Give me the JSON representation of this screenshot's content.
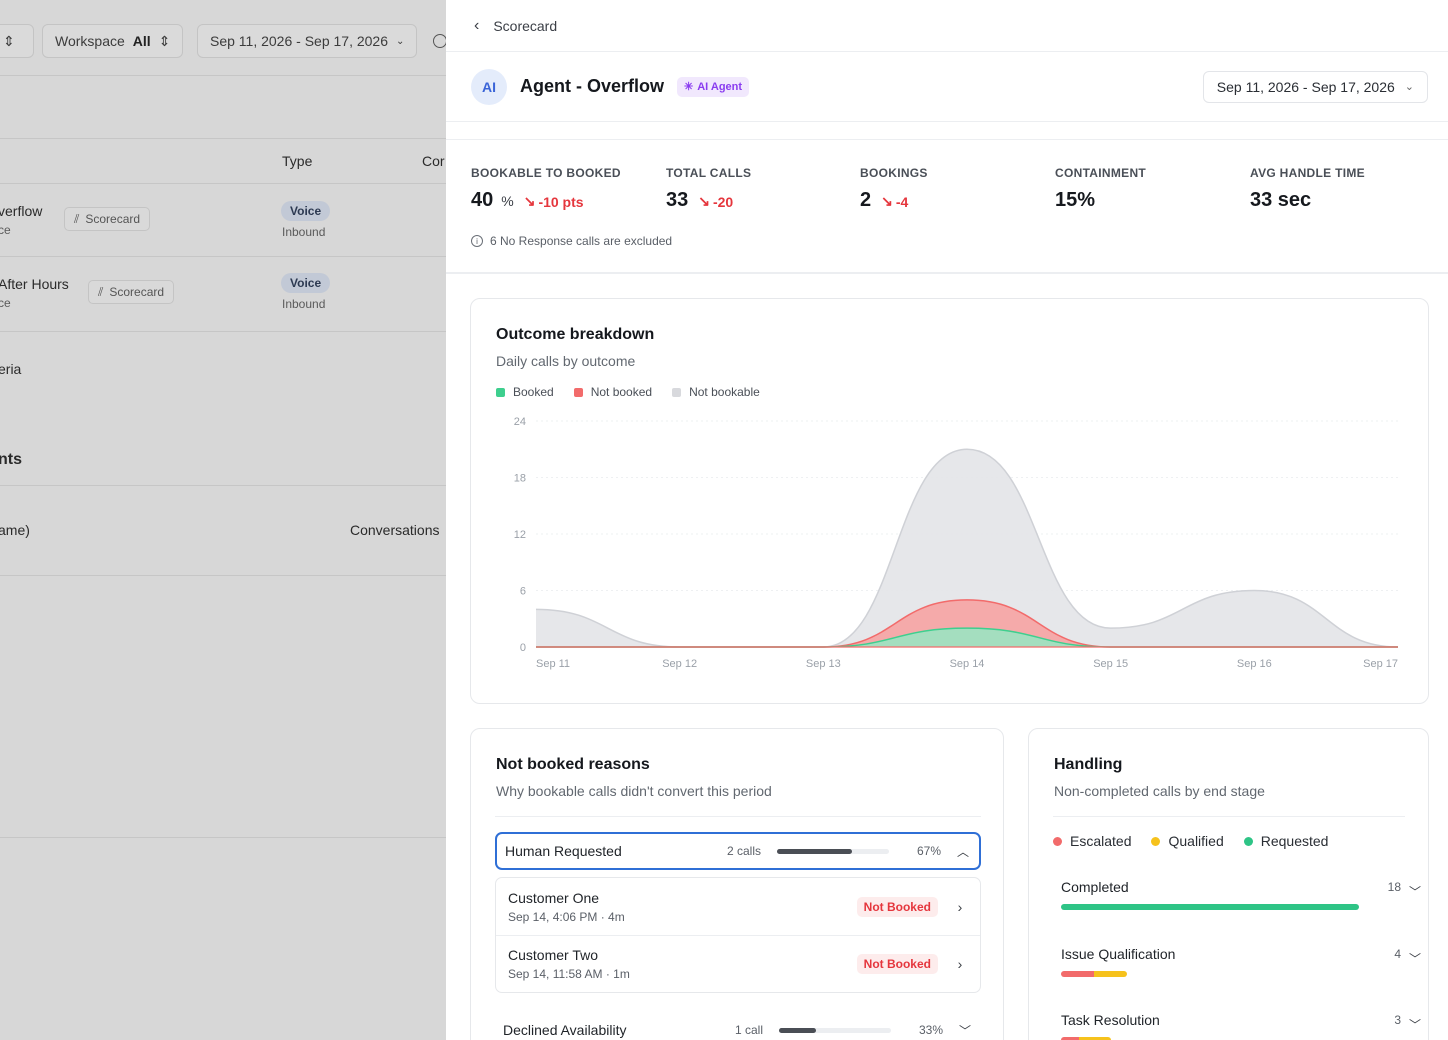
{
  "background": {
    "toolbar": {
      "workspace_label": "Workspace",
      "workspace_value": "All",
      "date_range": "Sep 11, 2026 - Sep 17, 2026"
    },
    "table": {
      "col_type": "Type",
      "col_co": "Cor",
      "rows": [
        {
          "name": "verflow",
          "sub": "ce",
          "chip": "Scorecard",
          "type": "Voice",
          "direction": "Inbound"
        },
        {
          "name": "After Hours",
          "sub": "ce",
          "chip": "Scorecard",
          "type": "Voice",
          "direction": "Inbound"
        }
      ]
    },
    "criteria_label": "eria",
    "section_label": "nts",
    "name_col": "ame)",
    "conversations_col": "Conversations"
  },
  "panel": {
    "back_label": "Scorecard",
    "agent": {
      "avatar": "AI",
      "name": "Agent - Overflow",
      "badge": "AI Agent"
    },
    "date_range": "Sep 11, 2026 - Sep 17, 2026",
    "kpis": [
      {
        "label": "BOOKABLE TO BOOKED",
        "value": "40",
        "unit": "%",
        "delta": "-10 pts"
      },
      {
        "label": "TOTAL CALLS",
        "value": "33",
        "unit": "",
        "delta": "-20"
      },
      {
        "label": "BOOKINGS",
        "value": "2",
        "unit": "",
        "delta": "-4"
      },
      {
        "label": "CONTAINMENT",
        "value": "15%",
        "unit": "",
        "delta": ""
      },
      {
        "label": "AVG HANDLE TIME",
        "value": "33 sec",
        "unit": "",
        "delta": ""
      }
    ],
    "note": "6 No Response calls are excluded",
    "outcome": {
      "title": "Outcome breakdown",
      "subtitle": "Daily calls by outcome",
      "legend": [
        "Booked",
        "Not booked",
        "Not bookable"
      ]
    },
    "reasons": {
      "title": "Not booked reasons",
      "subtitle": "Why bookable calls didn't convert this period",
      "items": [
        {
          "label": "Human Requested",
          "calls": "2 calls",
          "pct": "67%",
          "fill": 0.67
        },
        {
          "label": "Declined Availability",
          "calls": "1 call",
          "pct": "33%",
          "fill": 0.33
        }
      ],
      "calls": [
        {
          "name": "Customer One",
          "meta": "Sep 14, 4:06 PM · 4m",
          "status": "Not Booked"
        },
        {
          "name": "Customer Two",
          "meta": "Sep 14, 11:58 AM · 1m",
          "status": "Not Booked"
        }
      ]
    },
    "handling": {
      "title": "Handling",
      "subtitle": "Non-completed calls by end stage",
      "legend": [
        "Escalated",
        "Qualified",
        "Requested"
      ],
      "stages": [
        {
          "label": "Completed",
          "count": "18"
        },
        {
          "label": "Issue Qualification",
          "count": "4"
        },
        {
          "label": "Task Resolution",
          "count": "3"
        }
      ]
    },
    "colors": {
      "booked": "#3ecf8e",
      "not_booked": "#f26b6b",
      "not_bookable": "#d8d9dd",
      "escalated": "#f26b6b",
      "qualified": "#f6c21c",
      "requested": "#2ec486",
      "accent": "#2f6fd6"
    }
  },
  "chart_data": {
    "type": "area",
    "title": "Outcome breakdown",
    "subtitle": "Daily calls by outcome",
    "categories": [
      "Sep 11",
      "Sep 12",
      "Sep 13",
      "Sep 14",
      "Sep 15",
      "Sep 16",
      "Sep 17"
    ],
    "yticks": [
      0,
      6,
      12,
      18,
      24
    ],
    "ylim": [
      0,
      24
    ],
    "stacked": false,
    "series": [
      {
        "name": "Not bookable",
        "values": [
          4,
          0,
          0,
          21,
          2,
          6,
          0
        ]
      },
      {
        "name": "Not booked",
        "values": [
          0,
          0,
          0,
          5,
          0,
          0,
          0
        ]
      },
      {
        "name": "Booked",
        "values": [
          0,
          0,
          0,
          2,
          0,
          0,
          0
        ]
      }
    ]
  }
}
